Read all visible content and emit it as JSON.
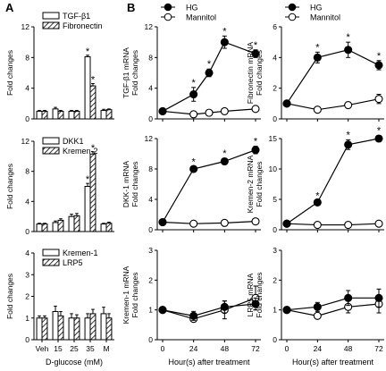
{
  "panel_labels": [
    "A",
    "B"
  ],
  "colors": {
    "ink": "#000000",
    "open_fill": "#ffffff",
    "hatch": "#000000"
  },
  "chart_data": [
    {
      "id": "A1",
      "type": "bar",
      "panel": "A",
      "ylabel": "Fold changes",
      "ylim": [
        0,
        12
      ],
      "yticks": [
        0,
        4,
        8,
        12
      ],
      "categories": [
        "Veh",
        "15",
        "25",
        "35",
        "M"
      ],
      "series": [
        {
          "name": "TGF-β1",
          "pattern": "open",
          "values": [
            1.0,
            1.3,
            1.0,
            8.1,
            1.1
          ],
          "errors": [
            0.1,
            0.2,
            0.1,
            0.2,
            0.15
          ]
        },
        {
          "name": "Fibronectin",
          "pattern": "hatched",
          "values": [
            1.0,
            1.0,
            1.0,
            4.3,
            1.2
          ],
          "errors": [
            0.1,
            0.1,
            0.1,
            0.3,
            0.1
          ]
        }
      ],
      "annotations": [
        {
          "text": "*",
          "category": "35",
          "series": 0
        },
        {
          "text": "*",
          "category": "35",
          "series": 1
        }
      ]
    },
    {
      "id": "A2",
      "type": "bar",
      "panel": "A",
      "ylabel": "Fold changes",
      "ylim": [
        0,
        12
      ],
      "yticks": [
        0,
        4,
        8,
        12
      ],
      "categories": [
        "Veh",
        "15",
        "25",
        "35",
        "M"
      ],
      "series": [
        {
          "name": "DKK1",
          "pattern": "open",
          "values": [
            1.0,
            1.2,
            2.0,
            6.0,
            1.0
          ],
          "errors": [
            0.1,
            0.2,
            0.3,
            0.4,
            0.1
          ]
        },
        {
          "name": "Kremen-2",
          "pattern": "hatched",
          "values": [
            1.0,
            1.5,
            2.1,
            10.3,
            1.1
          ],
          "errors": [
            0.1,
            0.2,
            0.3,
            0.3,
            0.15
          ]
        }
      ],
      "annotations": [
        {
          "text": "*",
          "category": "35",
          "series": 0
        },
        {
          "text": "*",
          "category": "35",
          "series": 1
        }
      ]
    },
    {
      "id": "A3",
      "type": "bar",
      "panel": "A",
      "xlabel": "D-glucose (mM)",
      "ylabel": "Fold changes",
      "ylim": [
        0,
        4
      ],
      "yticks": [
        0,
        1,
        2,
        3,
        4
      ],
      "categories": [
        "Veh",
        "15",
        "25",
        "35",
        "M"
      ],
      "series": [
        {
          "name": "Kremen-1",
          "pattern": "open",
          "values": [
            1.0,
            1.3,
            1.0,
            1.0,
            1.2
          ],
          "errors": [
            0.1,
            0.25,
            0.2,
            0.2,
            0.3
          ]
        },
        {
          "name": "LRP5",
          "pattern": "hatched",
          "values": [
            1.0,
            1.1,
            1.0,
            1.2,
            1.0
          ],
          "errors": [
            0.1,
            0.2,
            0.15,
            0.2,
            0.2
          ]
        }
      ]
    },
    {
      "id": "B1",
      "type": "line",
      "panel": "B",
      "ylabel": "TGF-β1 mRNA Fold changes",
      "ylim": [
        0,
        12
      ],
      "yticks": [
        0,
        4,
        8,
        12
      ],
      "x": [
        0,
        24,
        36,
        48,
        72
      ],
      "xticks": [
        0,
        24,
        48,
        72
      ],
      "legend": "top",
      "series": [
        {
          "name": "HG",
          "marker": "filled",
          "values": [
            1.0,
            3.2,
            6.0,
            10.0,
            8.5
          ],
          "errors": [
            0.1,
            0.9,
            0.5,
            0.8,
            0.5
          ]
        },
        {
          "name": "Mannitol",
          "marker": "open",
          "values": [
            1.0,
            0.6,
            0.8,
            1.0,
            1.3
          ],
          "errors": [
            0.1,
            0.2,
            0.2,
            0.2,
            0.3
          ]
        }
      ],
      "annotations": [
        {
          "text": "*",
          "x": 24
        },
        {
          "text": "*",
          "x": 36
        },
        {
          "text": "*",
          "x": 48
        },
        {
          "text": "*",
          "x": 72
        }
      ]
    },
    {
      "id": "B2",
      "type": "line",
      "panel": "B",
      "ylabel": "Fibronectin mRNA Fold changes",
      "ylim": [
        0,
        6
      ],
      "yticks": [
        0,
        2,
        4,
        6
      ],
      "x": [
        0,
        24,
        48,
        72
      ],
      "xticks": [
        0,
        24,
        48,
        72
      ],
      "legend": "top",
      "series": [
        {
          "name": "HG",
          "marker": "filled",
          "values": [
            1.0,
            4.0,
            4.5,
            3.5
          ],
          "errors": [
            0.1,
            0.35,
            0.5,
            0.3
          ]
        },
        {
          "name": "Mannitol",
          "marker": "open",
          "values": [
            1.0,
            0.6,
            0.9,
            1.3
          ],
          "errors": [
            0.1,
            0.15,
            0.2,
            0.3
          ]
        }
      ],
      "annotations": [
        {
          "text": "*",
          "x": 24
        },
        {
          "text": "*",
          "x": 48
        },
        {
          "text": "*",
          "x": 72
        }
      ]
    },
    {
      "id": "B3",
      "type": "line",
      "panel": "B",
      "ylabel": "DKK-1 mRNA Fold changes",
      "ylim": [
        0,
        12
      ],
      "yticks": [
        0,
        4,
        8,
        12
      ],
      "x": [
        0,
        24,
        48,
        72
      ],
      "xticks": [
        0,
        24,
        48,
        72
      ],
      "series": [
        {
          "name": "HG",
          "marker": "filled",
          "values": [
            1.0,
            8.0,
            9.0,
            10.5
          ],
          "errors": [
            0.1,
            0.3,
            0.4,
            0.5
          ]
        },
        {
          "name": "Mannitol",
          "marker": "open",
          "values": [
            1.0,
            0.8,
            0.9,
            1.1
          ],
          "errors": [
            0.1,
            0.1,
            0.1,
            0.15
          ]
        }
      ],
      "annotations": [
        {
          "text": "*",
          "x": 24
        },
        {
          "text": "*",
          "x": 48
        },
        {
          "text": "*",
          "x": 72
        }
      ]
    },
    {
      "id": "B4",
      "type": "line",
      "panel": "B",
      "ylabel": "Kremen-2 mRNA Fold changes",
      "ylim": [
        0,
        15
      ],
      "yticks": [
        0,
        5,
        10,
        15
      ],
      "x": [
        0,
        24,
        48,
        72
      ],
      "xticks": [
        0,
        24,
        48,
        72
      ],
      "series": [
        {
          "name": "HG",
          "marker": "filled",
          "values": [
            1.0,
            4.5,
            14.0,
            15.0
          ],
          "errors": [
            0.1,
            0.3,
            0.8,
            0.5
          ]
        },
        {
          "name": "Mannitol",
          "marker": "open",
          "values": [
            1.0,
            0.8,
            0.8,
            1.0
          ],
          "errors": [
            0.1,
            0.1,
            0.1,
            0.15
          ]
        }
      ],
      "annotations": [
        {
          "text": "*",
          "x": 24
        },
        {
          "text": "*",
          "x": 48
        },
        {
          "text": "*",
          "x": 72
        }
      ]
    },
    {
      "id": "B5",
      "type": "line",
      "panel": "B",
      "xlabel": "Hour(s) after treatment",
      "ylabel": "Kremen-1 mRNA Fold changes",
      "ylim": [
        0,
        3
      ],
      "yticks": [
        0,
        1,
        2,
        3
      ],
      "x": [
        0,
        24,
        48,
        72
      ],
      "xticks": [
        0,
        24,
        48,
        72
      ],
      "series": [
        {
          "name": "HG",
          "marker": "filled",
          "values": [
            1.0,
            0.8,
            1.1,
            1.2
          ],
          "errors": [
            0.1,
            0.15,
            0.2,
            0.2
          ]
        },
        {
          "name": "Mannitol",
          "marker": "open",
          "values": [
            1.0,
            0.7,
            1.0,
            1.4
          ],
          "errors": [
            0.1,
            0.1,
            0.3,
            0.4
          ]
        }
      ]
    },
    {
      "id": "B6",
      "type": "line",
      "panel": "B",
      "xlabel": "Hour(s) after treatment",
      "ylabel": "LRP5 mRNA Fold changes",
      "ylim": [
        0,
        3
      ],
      "yticks": [
        0,
        1,
        2,
        3
      ],
      "x": [
        0,
        24,
        48,
        72
      ],
      "xticks": [
        0,
        24,
        48,
        72
      ],
      "series": [
        {
          "name": "HG",
          "marker": "filled",
          "values": [
            1.0,
            1.1,
            1.4,
            1.4
          ],
          "errors": [
            0.1,
            0.15,
            0.25,
            0.3
          ]
        },
        {
          "name": "Mannitol",
          "marker": "open",
          "values": [
            1.0,
            0.8,
            1.1,
            1.2
          ],
          "errors": [
            0.1,
            0.1,
            0.2,
            0.3
          ]
        }
      ]
    }
  ]
}
